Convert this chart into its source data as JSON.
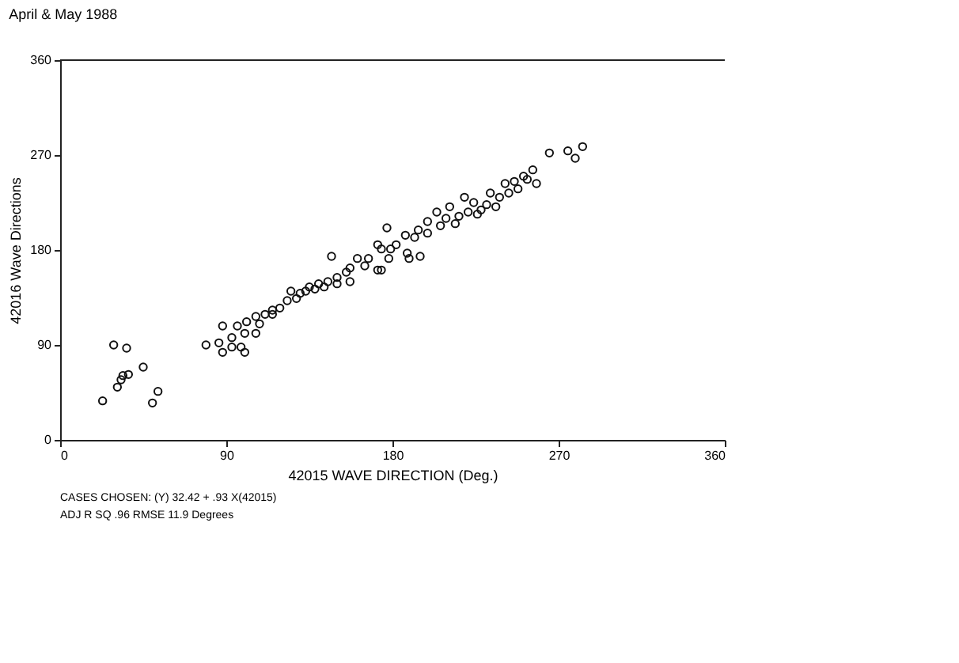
{
  "chart_data": {
    "type": "scatter",
    "title": "April & May 1988",
    "xlabel": "42015 WAVE DIRECTION (Deg.)",
    "ylabel": "42016 Wave Directions",
    "annotations": [
      "CASES CHOSEN: (Y) 32.42 + .93 X(42015)",
      "ADJ R SQ .96 RMSE 11.9 Degrees"
    ],
    "xlim": [
      0,
      360
    ],
    "ylim": [
      0,
      360
    ],
    "xticks": [
      0,
      90,
      180,
      270,
      360
    ],
    "yticks": [
      0,
      90,
      180,
      270,
      360
    ],
    "grid": false,
    "marker": "circle",
    "series": [
      {
        "color": "#111111",
        "x": [
          23,
          29,
          36,
          31,
          33,
          37,
          45,
          53,
          50,
          34,
          79,
          86,
          88,
          93,
          100,
          88,
          96,
          101,
          106,
          111,
          115,
          119,
          125,
          130,
          135,
          140,
          145,
          150,
          147,
          155,
          161,
          167,
          174,
          174,
          179,
          177,
          189,
          195,
          187,
          194,
          199,
          204,
          209,
          211,
          216,
          219,
          224,
          228,
          233,
          238,
          241,
          246,
          251,
          256,
          258,
          265,
          275,
          283,
          279,
          108,
          115,
          123,
          128,
          133,
          138,
          143,
          150,
          157,
          165,
          172,
          182,
          192,
          199,
          206,
          214,
          221,
          226,
          231,
          236,
          243,
          248,
          253,
          106,
          100,
          98,
          93,
          157,
          172,
          178,
          188
        ],
        "values": [
          37,
          90,
          87,
          50,
          57,
          62,
          69,
          46,
          35,
          61,
          90,
          92,
          83,
          88,
          83,
          108,
          108,
          112,
          117,
          119,
          123,
          125,
          141,
          139,
          145,
          148,
          150,
          154,
          174,
          159,
          172,
          172,
          161,
          181,
          181,
          201,
          172,
          174,
          194,
          199,
          207,
          216,
          210,
          221,
          212,
          230,
          225,
          218,
          234,
          230,
          243,
          245,
          250,
          256,
          243,
          272,
          274,
          278,
          267,
          110,
          119,
          132,
          134,
          141,
          143,
          145,
          148,
          163,
          165,
          185,
          185,
          192,
          196,
          203,
          205,
          216,
          214,
          223,
          221,
          234,
          238,
          247,
          101,
          101,
          88,
          97,
          150,
          161,
          172,
          177
        ]
      }
    ]
  }
}
